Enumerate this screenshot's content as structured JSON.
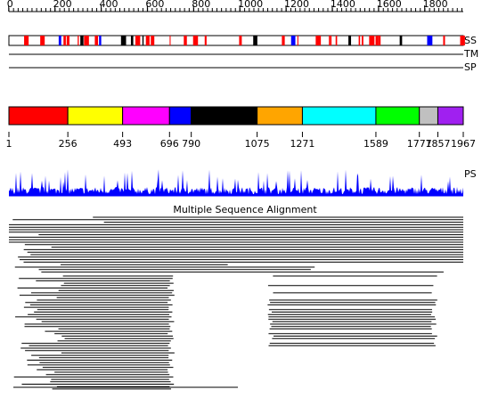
{
  "ruler": {
    "ticks": [
      0,
      200,
      400,
      600,
      800,
      1000,
      1200,
      1400,
      1600,
      1800
    ]
  },
  "tracks": {
    "ss": "SS",
    "tm": "TM",
    "sp": "SP",
    "ps": "PS"
  },
  "domains": {
    "boundaries": [
      1,
      256,
      493,
      696,
      790,
      1075,
      1271,
      1589,
      1777,
      1857,
      1967
    ],
    "colors": [
      "#ff0000",
      "#ffff00",
      "#ff00ff",
      "#0000ff",
      "#000000",
      "#ffa500",
      "#00ffff",
      "#00ff00",
      "#c0c0c0",
      "#a020f0"
    ]
  },
  "alignment": {
    "title": "Multiple Sequence Alignment"
  }
}
